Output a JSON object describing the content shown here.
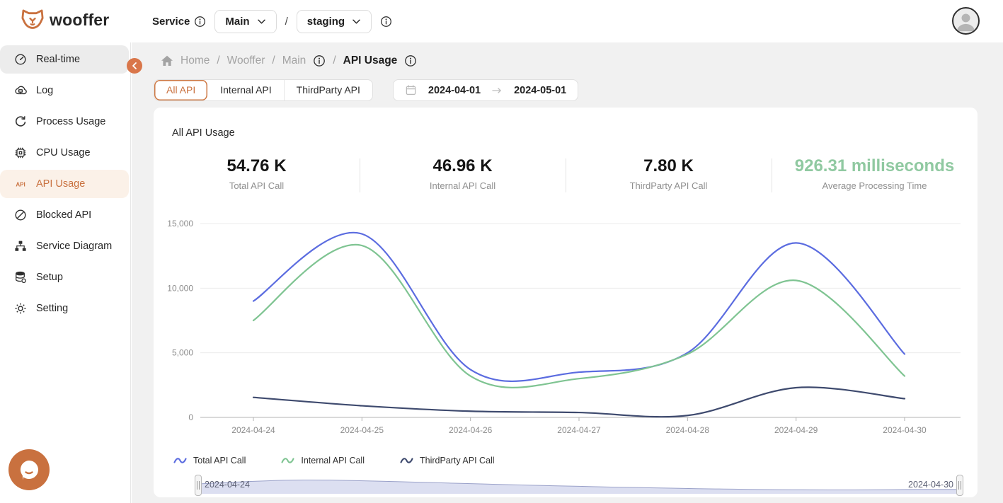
{
  "brand": {
    "name": "wooffer"
  },
  "header": {
    "service_label": "Service",
    "service_value": "Main",
    "environment": "staging",
    "divider": "/"
  },
  "sidebar": {
    "api_icon_text": "API",
    "items": [
      {
        "label": "Real-time",
        "icon": "gauge-icon"
      },
      {
        "label": "Log",
        "icon": "log-cloud-icon"
      },
      {
        "label": "Process Usage",
        "icon": "process-refresh-icon"
      },
      {
        "label": "CPU Usage",
        "icon": "cpu-chip-icon"
      },
      {
        "label": "API Usage",
        "icon": "api-icon",
        "selected": true
      },
      {
        "label": "Blocked API",
        "icon": "blocked-icon"
      },
      {
        "label": "Service Diagram",
        "icon": "diagram-icon"
      },
      {
        "label": "Setup",
        "icon": "database-icon"
      },
      {
        "label": "Setting",
        "icon": "gear-icon"
      }
    ]
  },
  "breadcrumb": {
    "home": "Home",
    "app": "Wooffer",
    "service": "Main",
    "page": "API Usage",
    "separator": "/"
  },
  "tabs": [
    {
      "label": "All API",
      "active": true
    },
    {
      "label": "Internal API",
      "active": false
    },
    {
      "label": "ThirdParty API",
      "active": false
    }
  ],
  "date_range": {
    "start": "2024-04-01",
    "end": "2024-05-01"
  },
  "card": {
    "title": "All API Usage",
    "stats": [
      {
        "value": "54.76 K",
        "label": "Total API Call"
      },
      {
        "value": "46.96 K",
        "label": "Internal API Call"
      },
      {
        "value": "7.80 K",
        "label": "ThirdParty API Call"
      },
      {
        "value": "926.31 milliseconds",
        "label": "Average Processing Time",
        "color": "#90c9a1"
      }
    ]
  },
  "chart_data": {
    "type": "line",
    "title": "All API Usage",
    "x": [
      "2024-04-24",
      "2024-04-25",
      "2024-04-26",
      "2024-04-27",
      "2024-04-28",
      "2024-04-29",
      "2024-04-30"
    ],
    "series": [
      {
        "name": "Total API Call",
        "color": "#5b6ce0",
        "values": [
          9000,
          14200,
          3700,
          3500,
          5000,
          13500,
          4900
        ]
      },
      {
        "name": "Internal API Call",
        "color": "#7fc492",
        "values": [
          7500,
          13300,
          3200,
          3000,
          4900,
          10600,
          3200
        ]
      },
      {
        "name": "ThirdParty API Call",
        "color": "#3e4a6e",
        "values": [
          1550,
          900,
          480,
          380,
          150,
          2300,
          1450
        ]
      }
    ],
    "ylim": [
      0,
      15000
    ],
    "yticks": [
      0,
      5000,
      10000,
      15000
    ],
    "grid": true,
    "legend_position": "bottom"
  },
  "brush": {
    "start_label": "2024-04-24",
    "end_label": "2024-04-30",
    "spark": [
      0.68,
      0.78,
      0.88,
      0.96,
      1.0,
      0.99,
      0.95,
      0.9,
      0.84,
      0.78,
      0.72,
      0.66,
      0.6,
      0.55,
      0.5,
      0.45,
      0.4,
      0.36,
      0.32,
      0.28,
      0.25,
      0.22,
      0.2,
      0.19,
      0.18,
      0.18,
      0.19,
      0.21,
      0.22,
      0.22
    ]
  },
  "colors": {
    "accent": "#c9713f",
    "accent_bg": "#fbf1e8",
    "stat_green": "#90c9a1",
    "series_total": "#5b6ce0",
    "series_internal": "#7fc492",
    "series_thirdparty": "#3e4a6e"
  }
}
